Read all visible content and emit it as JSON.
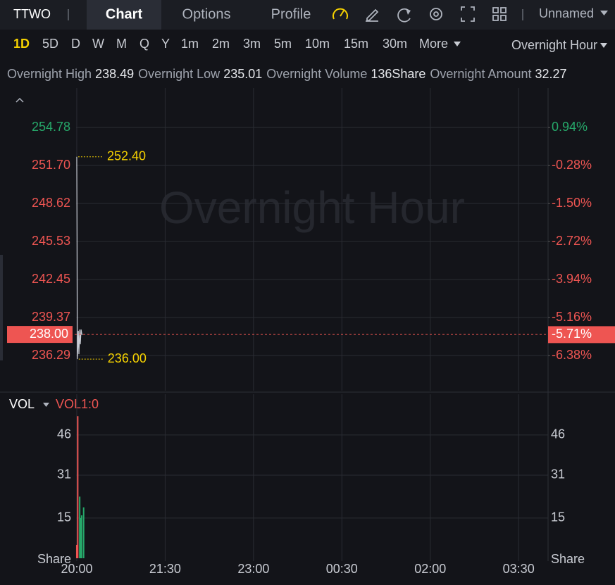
{
  "toolbar": {
    "symbol": "TTWO",
    "tabs": [
      "Chart",
      "Options",
      "Profile"
    ],
    "layout": "Unnamed"
  },
  "periods": [
    "1D",
    "5D",
    "D",
    "W",
    "M",
    "Q",
    "Y",
    "1m",
    "2m",
    "3m",
    "5m",
    "10m",
    "15m",
    "30m",
    "More"
  ],
  "session": "Overnight Hour",
  "stats": [
    {
      "label": "Overnight High",
      "value": "238.49"
    },
    {
      "label": "Overnight Low",
      "value": "235.01"
    },
    {
      "label": "Overnight Volume",
      "value": "136Share"
    },
    {
      "label": "Overnight Amount",
      "value": "32.27"
    }
  ],
  "chart_data": [
    {
      "type": "line",
      "watermark": "Overnight Hour",
      "color": "#c8ccd4",
      "up_color": "#26a86a",
      "down_color": "#ee5552",
      "x": [
        0,
        0.3,
        0.6,
        1,
        1.6,
        2.2,
        3,
        3.6,
        4.4,
        5.2,
        6
      ],
      "values": [
        252.4,
        246,
        236,
        236.6,
        238.3,
        236.4,
        238.4,
        237.2,
        238.4,
        238,
        238
      ],
      "xlim": [
        -71,
        480
      ],
      "ylim": [
        233.44,
        257.98
      ],
      "yticks": [
        254.78,
        {
          "value": 251.7,
          "label": "251.70"
        },
        248.62,
        245.53,
        242.45,
        239.37,
        236.29
      ],
      "y2lim": [
        -7.51,
        2.21
      ],
      "y2ticks": [
        {
          "value": 0.94,
          "label": "0.94%"
        },
        {
          "value": -0.28,
          "label": "-0.28%"
        },
        {
          "value": -1.5,
          "label": "-1.50%"
        },
        {
          "value": -2.72,
          "label": "-2.72%"
        },
        {
          "value": -3.94,
          "label": "-3.94%"
        },
        {
          "value": -5.16,
          "label": "-5.16%"
        },
        {
          "value": -6.38,
          "label": "-6.38%"
        }
      ],
      "last_price": {
        "value": 238,
        "label": "238.00"
      },
      "last_change": {
        "value": -5.71,
        "label": "-5.71%"
      },
      "annotations": [
        {
          "x": 0,
          "value": 252.4,
          "label": "252.40"
        },
        {
          "x": 0.6,
          "value": 236,
          "label": "236.00"
        }
      ],
      "grid": true
    },
    {
      "type": "bar",
      "title": "VOL",
      "indicator": "VOL1:0",
      "unit": "Share",
      "x": [
        0,
        1,
        3,
        4,
        5,
        7
      ],
      "values": [
        5,
        53,
        23,
        15,
        16,
        19
      ],
      "colors": [
        "#ee5552",
        "#ee5552",
        "#26a86a",
        "#26a86a",
        "#26a86a",
        "#26a86a"
      ],
      "xlim": [
        -71,
        480
      ],
      "ylim": [
        0,
        61.2
      ],
      "yticks": [
        15,
        31,
        46
      ],
      "xticks": [
        {
          "value": 0,
          "label": "20:00"
        },
        {
          "value": 90,
          "label": "21:30"
        },
        {
          "value": 180,
          "label": "23:00"
        },
        {
          "value": 270,
          "label": "00:30"
        },
        {
          "value": 360,
          "label": "02:00"
        },
        {
          "value": 450,
          "label": "03:30"
        }
      ],
      "grid": true
    }
  ]
}
